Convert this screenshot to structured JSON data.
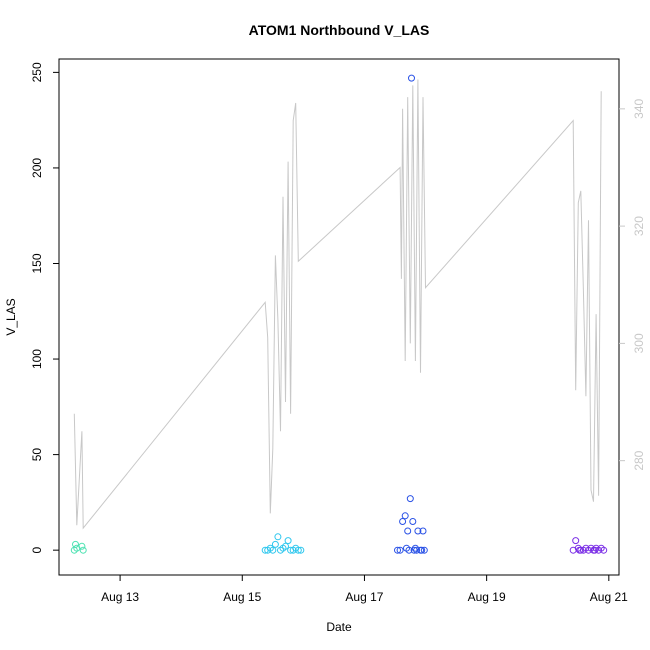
{
  "chart_data": {
    "type": "scatter",
    "title": "ATOM1 Northbound V_LAS",
    "xlabel": "Date",
    "ylabel": "V_LAS",
    "x_range_days": [
      "2024-08-12T00:00",
      "2024-08-21T04:00"
    ],
    "x_ticks": [
      {
        "label": "Aug 13",
        "at": "2024-08-13T00:00"
      },
      {
        "label": "Aug 15",
        "at": "2024-08-15T00:00"
      },
      {
        "label": "Aug 17",
        "at": "2024-08-17T00:00"
      },
      {
        "label": "Aug 19",
        "at": "2024-08-19T00:00"
      },
      {
        "label": "Aug 21",
        "at": "2024-08-21T00:00"
      }
    ],
    "ylim": [
      -13,
      257
    ],
    "y_ticks": [
      0,
      50,
      100,
      150,
      200,
      250
    ],
    "y2lim": [
      260.5,
      348.5
    ],
    "y2_ticks": [
      280,
      300,
      320,
      340
    ],
    "y2_color": "#c8c8c8",
    "line_color": "#c8c8c8",
    "grid": false,
    "secondary_series": {
      "points": [
        [
          "2024-08-12T06:00",
          288
        ],
        [
          "2024-08-12T07:00",
          269
        ],
        [
          "2024-08-12T09:00",
          285
        ],
        [
          "2024-08-12T09:30",
          268.5
        ],
        [
          "2024-08-15T09:00",
          307
        ],
        [
          "2024-08-15T10:00",
          301
        ],
        [
          "2024-08-15T11:00",
          271
        ],
        [
          "2024-08-15T12:00",
          282
        ],
        [
          "2024-08-15T13:00",
          315
        ],
        [
          "2024-08-15T14:00",
          304
        ],
        [
          "2024-08-15T15:00",
          285
        ],
        [
          "2024-08-15T16:00",
          325
        ],
        [
          "2024-08-15T17:00",
          290
        ],
        [
          "2024-08-15T18:00",
          331
        ],
        [
          "2024-08-15T19:00",
          288
        ],
        [
          "2024-08-15T20:00",
          338
        ],
        [
          "2024-08-15T21:00",
          341
        ],
        [
          "2024-08-15T22:00",
          314
        ],
        [
          "2024-08-17T14:00",
          330
        ],
        [
          "2024-08-17T14:30",
          311
        ],
        [
          "2024-08-17T15:00",
          340
        ],
        [
          "2024-08-17T16:00",
          297
        ],
        [
          "2024-08-17T17:00",
          342
        ],
        [
          "2024-08-17T18:00",
          300
        ],
        [
          "2024-08-17T19:00",
          344
        ],
        [
          "2024-08-17T20:00",
          297
        ],
        [
          "2024-08-17T21:00",
          345
        ],
        [
          "2024-08-17T22:00",
          295
        ],
        [
          "2024-08-17T23:00",
          342
        ],
        [
          "2024-08-18T00:00",
          309.5
        ],
        [
          "2024-08-20T10:00",
          338
        ],
        [
          "2024-08-20T11:00",
          292
        ],
        [
          "2024-08-20T12:00",
          324
        ],
        [
          "2024-08-20T13:00",
          326
        ],
        [
          "2024-08-20T14:00",
          309
        ],
        [
          "2024-08-20T15:00",
          291
        ],
        [
          "2024-08-20T16:00",
          321
        ],
        [
          "2024-08-20T17:00",
          275
        ],
        [
          "2024-08-20T18:00",
          273
        ],
        [
          "2024-08-20T19:00",
          305
        ],
        [
          "2024-08-20T20:00",
          274
        ],
        [
          "2024-08-20T21:00",
          343
        ]
      ]
    },
    "series": [
      {
        "color": "#4de2b2",
        "points": [
          [
            "2024-08-12T06:00",
            0
          ],
          [
            "2024-08-12T06:30",
            3
          ],
          [
            "2024-08-12T07:00",
            1
          ],
          [
            "2024-08-12T09:00",
            2
          ],
          [
            "2024-08-12T09:30",
            0
          ]
        ]
      },
      {
        "color": "#2fc7ee",
        "points": [
          [
            "2024-08-15T09:00",
            0
          ],
          [
            "2024-08-15T10:00",
            0
          ],
          [
            "2024-08-15T11:00",
            1
          ],
          [
            "2024-08-15T12:00",
            0
          ],
          [
            "2024-08-15T13:00",
            3
          ],
          [
            "2024-08-15T14:00",
            7
          ],
          [
            "2024-08-15T15:00",
            0
          ],
          [
            "2024-08-15T16:00",
            1
          ],
          [
            "2024-08-15T17:00",
            2
          ],
          [
            "2024-08-15T18:00",
            5
          ],
          [
            "2024-08-15T19:00",
            0
          ],
          [
            "2024-08-15T20:00",
            0
          ],
          [
            "2024-08-15T21:00",
            1
          ],
          [
            "2024-08-15T22:00",
            0
          ],
          [
            "2024-08-15T23:00",
            0
          ]
        ]
      },
      {
        "color": "#2a52e6",
        "points": [
          [
            "2024-08-17T14:00",
            0
          ],
          [
            "2024-08-17T15:00",
            15
          ],
          [
            "2024-08-17T16:00",
            18
          ],
          [
            "2024-08-17T16:30",
            1
          ],
          [
            "2024-08-17T17:00",
            10
          ],
          [
            "2024-08-17T18:00",
            27
          ],
          [
            "2024-08-17T18:30",
            247
          ],
          [
            "2024-08-17T19:00",
            15
          ],
          [
            "2024-08-17T20:00",
            1
          ],
          [
            "2024-08-17T21:00",
            10
          ],
          [
            "2024-08-17T22:00",
            0
          ],
          [
            "2024-08-17T23:00",
            10
          ],
          [
            "2024-08-17T23:30",
            0
          ],
          [
            "2024-08-17T13:00",
            0
          ],
          [
            "2024-08-17T17:30",
            0
          ],
          [
            "2024-08-17T19:30",
            0
          ],
          [
            "2024-08-17T20:30",
            0
          ],
          [
            "2024-08-17T22:30",
            0
          ]
        ]
      },
      {
        "color": "#7b2fe6",
        "points": [
          [
            "2024-08-20T10:00",
            0
          ],
          [
            "2024-08-20T11:00",
            5
          ],
          [
            "2024-08-20T12:00",
            1
          ],
          [
            "2024-08-20T13:00",
            0
          ],
          [
            "2024-08-20T14:00",
            0
          ],
          [
            "2024-08-20T15:00",
            1
          ],
          [
            "2024-08-20T16:00",
            0
          ],
          [
            "2024-08-20T17:00",
            1
          ],
          [
            "2024-08-20T18:00",
            0
          ],
          [
            "2024-08-20T19:00",
            1
          ],
          [
            "2024-08-20T20:00",
            0
          ],
          [
            "2024-08-20T21:00",
            1
          ],
          [
            "2024-08-20T22:00",
            0
          ],
          [
            "2024-08-20T12:30",
            0
          ],
          [
            "2024-08-20T18:30",
            0
          ]
        ]
      }
    ]
  }
}
